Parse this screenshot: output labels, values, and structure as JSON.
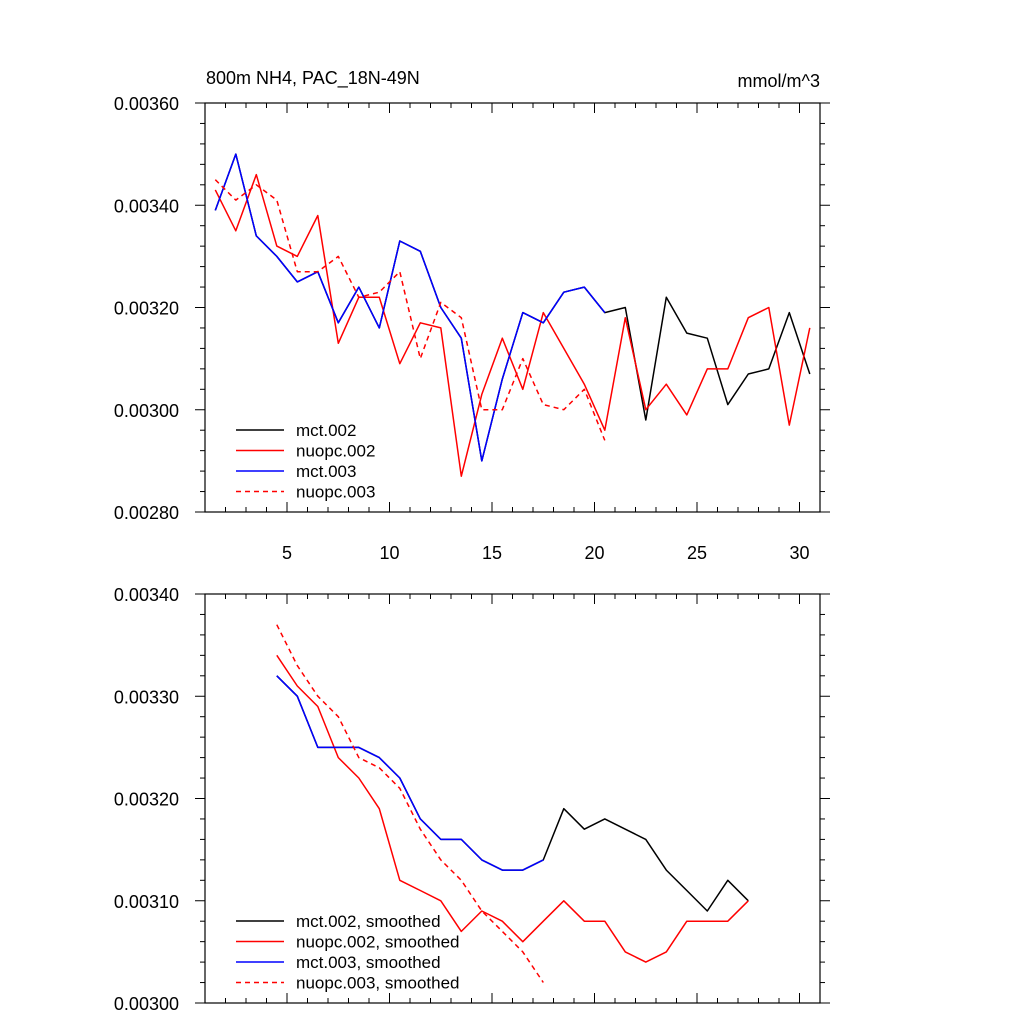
{
  "chart_data": [
    {
      "type": "line",
      "title": "800m NH4, PAC_18N-49N",
      "units": "mmol/m^3",
      "xlim": [
        1,
        31
      ],
      "ylim": [
        0.0028,
        0.0036
      ],
      "xticks": [
        5,
        10,
        15,
        20,
        25,
        30
      ],
      "xtick_labels": [
        "5",
        "10",
        "15",
        "20",
        "25",
        "30"
      ],
      "yticks": [
        0.0028,
        0.003,
        0.0032,
        0.0034,
        0.0036
      ],
      "ytick_labels": [
        "0.00280",
        "0.00300",
        "0.00320",
        "0.00340",
        "0.00360"
      ],
      "legend_position": "lower-left",
      "series": [
        {
          "name": "mct.002",
          "color": "#000000",
          "dash": "solid",
          "x": [
            1.5,
            2.5,
            3.5,
            4.5,
            5.5,
            6.5,
            7.5,
            8.5,
            9.5,
            10.5,
            11.5,
            12.5,
            13.5,
            14.5,
            15.5,
            16.5,
            17.5,
            18.5,
            19.5,
            20.5,
            21.5,
            22.5,
            23.5,
            24.5,
            25.5,
            26.5,
            27.5,
            28.5,
            29.5,
            30.5
          ],
          "values": [
            0.00339,
            0.0035,
            0.00334,
            0.0033,
            0.00325,
            0.00327,
            0.00317,
            0.00324,
            0.00316,
            0.00333,
            0.00331,
            0.0032,
            0.00314,
            0.0029,
            0.00306,
            0.00319,
            0.00317,
            0.00323,
            0.00324,
            0.00319,
            0.0032,
            0.00298,
            0.00322,
            0.00315,
            0.00314,
            0.00301,
            0.00307,
            0.00308,
            0.00319,
            0.00307
          ]
        },
        {
          "name": "nuopc.002",
          "color": "#ff0000",
          "dash": "solid",
          "x": [
            1.5,
            2.5,
            3.5,
            4.5,
            5.5,
            6.5,
            7.5,
            8.5,
            9.5,
            10.5,
            11.5,
            12.5,
            13.5,
            14.5,
            15.5,
            16.5,
            17.5,
            18.5,
            19.5,
            20.5,
            21.5,
            22.5,
            23.5,
            24.5,
            25.5,
            26.5,
            27.5,
            28.5,
            29.5,
            30.5
          ],
          "values": [
            0.00343,
            0.00335,
            0.00346,
            0.00332,
            0.0033,
            0.00338,
            0.00313,
            0.00322,
            0.00322,
            0.00309,
            0.00317,
            0.00316,
            0.00287,
            0.00303,
            0.00314,
            0.00304,
            0.00319,
            0.00312,
            0.00305,
            0.00296,
            0.00318,
            0.003,
            0.00305,
            0.00299,
            0.00308,
            0.00308,
            0.00318,
            0.0032,
            0.00297,
            0.00316
          ]
        },
        {
          "name": "mct.003",
          "color": "#0000ff",
          "dash": "solid",
          "x": [
            1.5,
            2.5,
            3.5,
            4.5,
            5.5,
            6.5,
            7.5,
            8.5,
            9.5,
            10.5,
            11.5,
            12.5,
            13.5,
            14.5,
            15.5,
            16.5,
            17.5,
            18.5,
            19.5,
            20.5
          ],
          "values": [
            0.00339,
            0.0035,
            0.00334,
            0.0033,
            0.00325,
            0.00327,
            0.00317,
            0.00324,
            0.00316,
            0.00333,
            0.00331,
            0.0032,
            0.00314,
            0.0029,
            0.00306,
            0.00319,
            0.00317,
            0.00323,
            0.00324,
            0.00319
          ]
        },
        {
          "name": "nuopc.003",
          "color": "#ff0000",
          "dash": "dashed",
          "x": [
            1.5,
            2.5,
            3.5,
            4.5,
            5.5,
            6.5,
            7.5,
            8.5,
            9.5,
            10.5,
            11.5,
            12.5,
            13.5,
            14.5,
            15.5,
            16.5,
            17.5,
            18.5,
            19.5,
            20.5
          ],
          "values": [
            0.00345,
            0.00341,
            0.00344,
            0.00341,
            0.00327,
            0.00327,
            0.0033,
            0.00322,
            0.00323,
            0.00327,
            0.0031,
            0.00321,
            0.00318,
            0.003,
            0.003,
            0.0031,
            0.00301,
            0.003,
            0.00304,
            0.00294
          ]
        }
      ]
    },
    {
      "type": "line",
      "title": "",
      "xlim": [
        1,
        31
      ],
      "ylim": [
        0.003,
        0.0034
      ],
      "xticks": [
        5,
        10,
        15,
        20,
        25,
        30
      ],
      "xtick_labels": [],
      "yticks": [
        0.003,
        0.0031,
        0.0032,
        0.0033,
        0.0034
      ],
      "ytick_labels": [
        "0.00300",
        "0.00310",
        "0.00320",
        "0.00330",
        "0.00340"
      ],
      "legend_position": "lower-left",
      "series": [
        {
          "name": "mct.002, smoothed",
          "color": "#000000",
          "dash": "solid",
          "x": [
            4.5,
            5.5,
            6.5,
            7.5,
            8.5,
            9.5,
            10.5,
            11.5,
            12.5,
            13.5,
            14.5,
            15.5,
            16.5,
            17.5,
            18.5,
            19.5,
            20.5,
            21.5,
            22.5,
            23.5,
            24.5,
            25.5,
            26.5,
            27.5
          ],
          "values": [
            0.00332,
            0.0033,
            0.00325,
            0.00325,
            0.00325,
            0.00324,
            0.00322,
            0.00318,
            0.00316,
            0.00316,
            0.00314,
            0.00313,
            0.00313,
            0.00314,
            0.00319,
            0.00317,
            0.00318,
            0.00317,
            0.00316,
            0.00313,
            0.00311,
            0.00309,
            0.00312,
            0.0031
          ]
        },
        {
          "name": "nuopc.002, smoothed",
          "color": "#ff0000",
          "dash": "solid",
          "x": [
            4.5,
            5.5,
            6.5,
            7.5,
            8.5,
            9.5,
            10.5,
            11.5,
            12.5,
            13.5,
            14.5,
            15.5,
            16.5,
            17.5,
            18.5,
            19.5,
            20.5,
            21.5,
            22.5,
            23.5,
            24.5,
            25.5,
            26.5,
            27.5
          ],
          "values": [
            0.00334,
            0.00331,
            0.00329,
            0.00324,
            0.00322,
            0.00319,
            0.00312,
            0.00311,
            0.0031,
            0.00307,
            0.00309,
            0.00308,
            0.00306,
            0.00308,
            0.0031,
            0.00308,
            0.00308,
            0.00305,
            0.00304,
            0.00305,
            0.00308,
            0.00308,
            0.00308,
            0.0031
          ]
        },
        {
          "name": "mct.003, smoothed",
          "color": "#0000ff",
          "dash": "solid",
          "x": [
            4.5,
            5.5,
            6.5,
            7.5,
            8.5,
            9.5,
            10.5,
            11.5,
            12.5,
            13.5,
            14.5,
            15.5,
            16.5,
            17.5
          ],
          "values": [
            0.00332,
            0.0033,
            0.00325,
            0.00325,
            0.00325,
            0.00324,
            0.00322,
            0.00318,
            0.00316,
            0.00316,
            0.00314,
            0.00313,
            0.00313,
            0.00314
          ]
        },
        {
          "name": "nuopc.003, smoothed",
          "color": "#ff0000",
          "dash": "dashed",
          "x": [
            4.5,
            5.5,
            6.5,
            7.5,
            8.5,
            9.5,
            10.5,
            11.5,
            12.5,
            13.5,
            14.5,
            15.5,
            16.5,
            17.5
          ],
          "values": [
            0.00337,
            0.00333,
            0.0033,
            0.00328,
            0.00324,
            0.00323,
            0.00321,
            0.00317,
            0.00314,
            0.00312,
            0.00309,
            0.00307,
            0.00305,
            0.00302
          ]
        }
      ]
    }
  ]
}
